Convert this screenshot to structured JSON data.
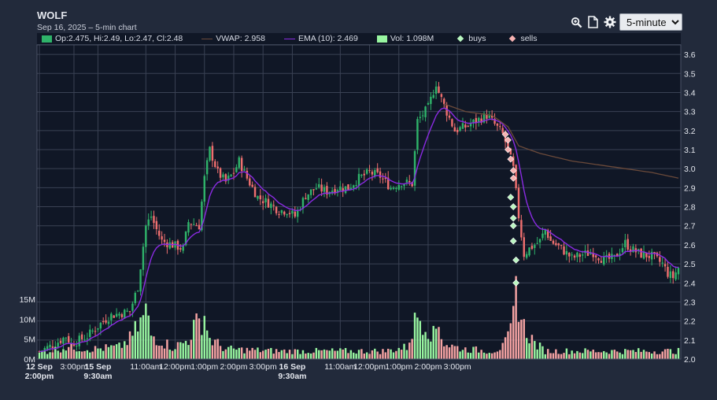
{
  "header": {
    "ticker": "WOLF",
    "subtitle": "Sep 16, 2025 – 5-min chart"
  },
  "toolbar": {
    "icons": [
      "zoom-icon",
      "document-icon",
      "gear-icon"
    ],
    "interval_selected": "5-minute"
  },
  "legend": {
    "ohlc": "Op:2.475, Hi:2.49, Lo:2.47, Cl:2.48",
    "vwap": "VWAP: 2.958",
    "ema": "EMA (10): 2.469",
    "volume": "Vol: 1.098M",
    "buys": "buys",
    "sells": "sells"
  },
  "colors": {
    "background": "#222a3b",
    "plot_background": "#101726",
    "up": "#2fb36a",
    "down": "#ef6f6f",
    "volume_up": "#98f5a0",
    "volume_down": "#f5a3a3",
    "vwap": "#6b4a3a",
    "ema": "#8a2be2",
    "buy_marker": "#b9f7c0",
    "sell_marker": "#f7b2b2",
    "grid": "#3a4254"
  },
  "chart_data": {
    "type": "candlestick",
    "price_axis": {
      "side": "right",
      "ylim": [
        2.0,
        3.65
      ],
      "ticks": [
        "2.0",
        "2.1",
        "2.2",
        "2.3",
        "2.4",
        "2.5",
        "2.6",
        "2.7",
        "2.8",
        "2.9",
        "3.0",
        "3.1",
        "3.2",
        "3.3",
        "3.4",
        "3.5",
        "3.6"
      ]
    },
    "volume_axis": {
      "side": "left",
      "ticks": [
        "0M",
        "5M",
        "10M",
        "15M"
      ],
      "ylim": [
        0,
        30
      ]
    },
    "x_ticks": [
      {
        "label": "12 Sep",
        "label2": "2:00pm",
        "bold": true
      },
      {
        "label": "3:00pm"
      },
      {
        "label": "15 Sep",
        "label2": "9:30am",
        "bold": true
      },
      {
        "label": "11:00am"
      },
      {
        "label": "12:00pm"
      },
      {
        "label": "1:00pm"
      },
      {
        "label": "2:00pm"
      },
      {
        "label": "3:00pm"
      },
      {
        "label": "16 Sep",
        "label2": "9:30am",
        "bold": true
      },
      {
        "label": "11:00am"
      },
      {
        "label": "12:00pm"
      },
      {
        "label": "1:00pm"
      },
      {
        "label": "2:00pm"
      },
      {
        "label": "3:00pm"
      }
    ],
    "close_anchors": [
      [
        0,
        2.04
      ],
      [
        6,
        2.08
      ],
      [
        10,
        2.12
      ],
      [
        12,
        2.08
      ],
      [
        18,
        2.12
      ],
      [
        24,
        2.2
      ],
      [
        27,
        2.23
      ],
      [
        34,
        2.25
      ],
      [
        37,
        2.38
      ],
      [
        40,
        2.7
      ],
      [
        42,
        2.75
      ],
      [
        44,
        2.68
      ],
      [
        46,
        2.62
      ],
      [
        50,
        2.6
      ],
      [
        54,
        2.58
      ],
      [
        56,
        2.72
      ],
      [
        60,
        2.7
      ],
      [
        62,
        2.95
      ],
      [
        64,
        3.1
      ],
      [
        67,
        2.98
      ],
      [
        70,
        2.93
      ],
      [
        73,
        2.98
      ],
      [
        75,
        3.04
      ],
      [
        78,
        2.95
      ],
      [
        82,
        2.85
      ],
      [
        86,
        2.82
      ],
      [
        90,
        2.78
      ],
      [
        93,
        2.78
      ],
      [
        96,
        2.75
      ],
      [
        100,
        2.86
      ],
      [
        104,
        2.9
      ],
      [
        108,
        2.88
      ],
      [
        112,
        2.9
      ],
      [
        116,
        2.9
      ],
      [
        120,
        2.95
      ],
      [
        124,
        2.98
      ],
      [
        128,
        2.96
      ],
      [
        132,
        2.9
      ],
      [
        136,
        2.93
      ],
      [
        140,
        2.92
      ],
      [
        142,
        3.25
      ],
      [
        146,
        3.32
      ],
      [
        149,
        3.45
      ],
      [
        150,
        3.4
      ],
      [
        152,
        3.33
      ],
      [
        156,
        3.2
      ],
      [
        160,
        3.22
      ],
      [
        164,
        3.25
      ],
      [
        168,
        3.28
      ],
      [
        170,
        3.25
      ],
      [
        174,
        3.18
      ],
      [
        176,
        3.1
      ],
      [
        178,
        3.0
      ],
      [
        180,
        2.75
      ],
      [
        182,
        2.55
      ],
      [
        184,
        2.58
      ],
      [
        188,
        2.62
      ],
      [
        190,
        2.68
      ],
      [
        192,
        2.62
      ],
      [
        196,
        2.58
      ],
      [
        200,
        2.53
      ],
      [
        204,
        2.55
      ],
      [
        208,
        2.56
      ],
      [
        212,
        2.52
      ],
      [
        216,
        2.53
      ],
      [
        220,
        2.61
      ],
      [
        222,
        2.58
      ],
      [
        226,
        2.55
      ],
      [
        230,
        2.54
      ],
      [
        234,
        2.5
      ],
      [
        236,
        2.45
      ],
      [
        238,
        2.43
      ],
      [
        240,
        2.48
      ]
    ],
    "vwap_anchors": [
      [
        152,
        3.34
      ],
      [
        160,
        3.3
      ],
      [
        170,
        3.28
      ],
      [
        176,
        3.22
      ],
      [
        180,
        3.12
      ],
      [
        188,
        3.08
      ],
      [
        200,
        3.04
      ],
      [
        215,
        3.01
      ],
      [
        230,
        2.98
      ],
      [
        240,
        2.95
      ]
    ],
    "volume_anchors": [
      [
        0,
        1.5
      ],
      [
        10,
        3
      ],
      [
        20,
        2.5
      ],
      [
        30,
        3
      ],
      [
        34,
        5
      ],
      [
        38,
        9
      ],
      [
        40,
        12
      ],
      [
        42,
        6
      ],
      [
        50,
        3
      ],
      [
        54,
        4
      ],
      [
        56,
        5
      ],
      [
        58,
        8
      ],
      [
        60,
        9
      ],
      [
        62,
        11
      ],
      [
        64,
        5
      ],
      [
        70,
        2.5
      ],
      [
        90,
        2
      ],
      [
        110,
        2
      ],
      [
        130,
        2
      ],
      [
        138,
        3
      ],
      [
        140,
        7
      ],
      [
        142,
        11
      ],
      [
        144,
        10
      ],
      [
        146,
        8
      ],
      [
        148,
        6
      ],
      [
        150,
        9
      ],
      [
        152,
        4
      ],
      [
        156,
        3
      ],
      [
        160,
        2.5
      ],
      [
        170,
        2
      ],
      [
        174,
        3
      ],
      [
        176,
        5
      ],
      [
        178,
        10
      ],
      [
        179,
        18
      ],
      [
        180,
        15
      ],
      [
        181,
        10
      ],
      [
        182,
        8
      ],
      [
        184,
        6
      ],
      [
        186,
        4
      ],
      [
        190,
        2
      ],
      [
        210,
        2
      ],
      [
        240,
        2
      ]
    ],
    "buys": [
      [
        177,
        2.85
      ],
      [
        178,
        2.8
      ],
      [
        178,
        2.74
      ],
      [
        178,
        2.7
      ],
      [
        178,
        2.62
      ],
      [
        179,
        2.52
      ],
      [
        179,
        2.4
      ]
    ],
    "sells": [
      [
        175,
        3.18
      ],
      [
        176,
        3.15
      ],
      [
        176,
        3.1
      ],
      [
        177,
        3.05
      ],
      [
        178,
        2.99
      ],
      [
        178,
        2.95
      ]
    ],
    "last_bar": {
      "open": 2.475,
      "high": 2.49,
      "low": 2.47,
      "close": 2.48,
      "volume": "1.098M"
    },
    "ema_period": 10
  }
}
